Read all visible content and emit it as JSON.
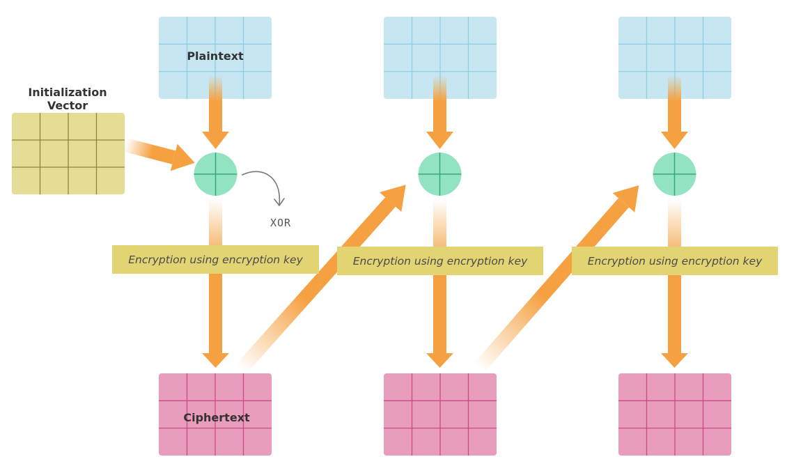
{
  "labels": {
    "iv_line1": "Initialization",
    "iv_line2": "Vector",
    "plaintext": "Plaintext",
    "ciphertext": "Ciphertext",
    "xor": "XOR"
  },
  "stages": [
    {
      "encryption_label": "Encryption using encryption key"
    },
    {
      "encryption_label": "Encryption using encryption key"
    },
    {
      "encryption_label": "Encryption using encryption key"
    }
  ],
  "colors": {
    "plaintext_fill": "#c6e7f1",
    "plaintext_grid": "#8fcde3",
    "iv_fill": "#e5dc96",
    "iv_grid": "#8e8633",
    "ciphertext_fill": "#e89dbd",
    "ciphertext_grid": "#c94a85",
    "xor_fill": "#92e3c2",
    "xor_line": "#3aa57a",
    "encryption_box": "#e3d473",
    "arrow": "#f5a142"
  }
}
